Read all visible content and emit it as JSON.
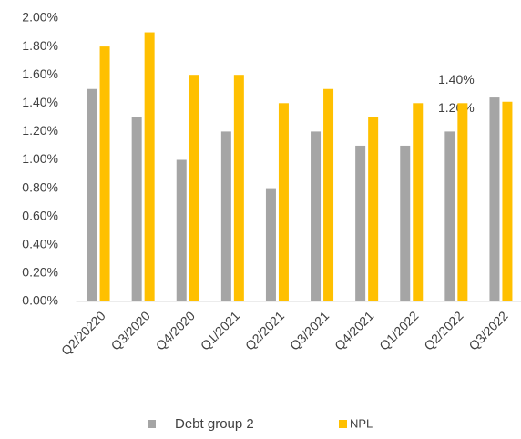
{
  "chart_data": {
    "type": "bar",
    "categories": [
      "Q2/20220",
      "Q3/2020",
      "Q4/2020",
      "Q1/2021",
      "Q2/2021",
      "Q3/2021",
      "Q4/2021",
      "Q1/2022",
      "Q2/2022",
      "Q3/2022"
    ],
    "series": [
      {
        "name": "Debt group 2",
        "color": "#a5a5a5",
        "values": [
          1.5,
          1.3,
          1.0,
          1.2,
          0.8,
          1.2,
          1.1,
          1.1,
          1.2,
          1.44
        ],
        "value_labels": [
          null,
          null,
          null,
          null,
          null,
          null,
          null,
          null,
          "1.20%",
          null
        ]
      },
      {
        "name": "NPL",
        "color": "#ffc000",
        "values": [
          1.8,
          1.9,
          1.6,
          1.6,
          1.4,
          1.5,
          1.3,
          1.4,
          1.4,
          1.41
        ],
        "value_labels": [
          null,
          null,
          null,
          null,
          null,
          null,
          null,
          null,
          "1.40%",
          null
        ]
      }
    ],
    "ylim": [
      0,
      2
    ],
    "yticks": [
      {
        "value": 0,
        "label": "0.00%"
      },
      {
        "value": 0.2,
        "label": "0.20%"
      },
      {
        "value": 0.4,
        "label": "0.40%"
      },
      {
        "value": 0.6,
        "label": "0.60%"
      },
      {
        "value": 0.8,
        "label": "0.80%"
      },
      {
        "value": 1.0,
        "label": "1.00%"
      },
      {
        "value": 1.2,
        "label": "1.20%"
      },
      {
        "value": 1.4,
        "label": "1.40%"
      },
      {
        "value": 1.6,
        "label": "1.60%"
      },
      {
        "value": 1.8,
        "label": "1.80%"
      },
      {
        "value": 2.0,
        "label": "2.00%"
      }
    ],
    "grid": false,
    "legend": "bottom"
  }
}
